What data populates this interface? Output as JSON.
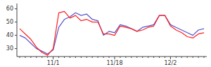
{
  "chart_data": {
    "type": "line",
    "categories": [
      null,
      null,
      null,
      null,
      null,
      null,
      "11/1",
      null,
      null,
      null,
      null,
      null,
      null,
      null,
      null,
      null,
      null,
      "11/18",
      null,
      null,
      null,
      null,
      null,
      null,
      null,
      null,
      null,
      "12/2",
      null,
      null,
      null,
      null,
      null,
      null
    ],
    "series": [
      {
        "color": "#5555cc",
        "values": [
          40,
          38,
          34,
          30,
          28,
          26,
          29,
          46,
          52,
          54,
          57,
          55,
          56,
          52,
          51,
          40,
          43,
          42,
          48,
          47,
          45,
          43,
          46,
          47,
          48,
          55,
          55,
          48,
          46,
          44,
          42,
          40,
          44,
          45
        ]
      },
      {
        "color": "#ff2020",
        "values": [
          45,
          41,
          37,
          31,
          27,
          25,
          30,
          57,
          58,
          53,
          55,
          51,
          52,
          50,
          50,
          41,
          41,
          40,
          47,
          46,
          45,
          43,
          44,
          46,
          47,
          55,
          55,
          47,
          44,
          42,
          39,
          38,
          41,
          42
        ]
      }
    ],
    "ylim": [
      24,
      64
    ],
    "yticks": [
      30,
      40,
      50,
      60
    ],
    "grid": false
  }
}
